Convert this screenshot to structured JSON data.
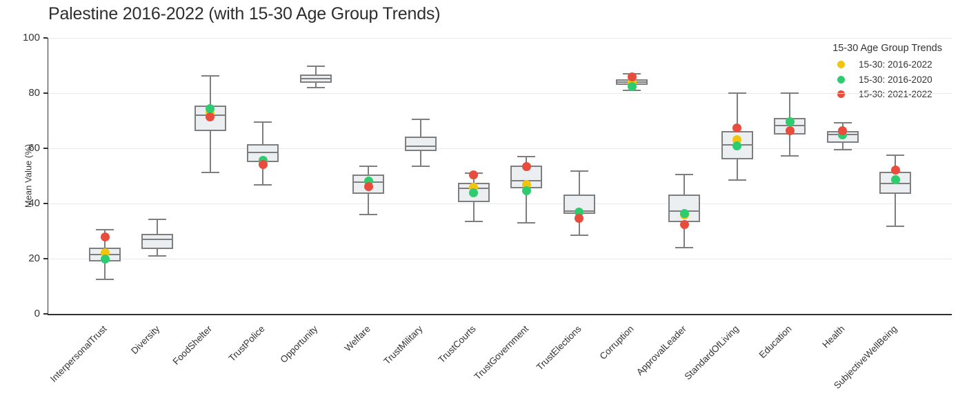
{
  "chart_data": {
    "type": "box",
    "title": "Palestine 2016-2022 (with 15-30 Age Group Trends)",
    "ylabel": "Mean Value (%)",
    "ylim": [
      0,
      100
    ],
    "y_ticks": [
      0,
      20,
      40,
      60,
      80,
      100
    ],
    "grid": true,
    "style": {
      "background": "#ffffff",
      "box_fill": "#eceff1",
      "box_stroke": "#7e7e7e",
      "grid_color": "#e8e8e8",
      "axis_color": "#2f2f2f",
      "text_color": "#333333"
    },
    "legend": {
      "title": "15-30 Age Group Trends",
      "position": "top-right",
      "entries": [
        {
          "key": "avg_2016_2022",
          "label": "15-30: 2016-2022",
          "color": "#f1c40f"
        },
        {
          "key": "avg_2016_2020",
          "label": "15-30: 2016-2020",
          "color": "#2ecc71"
        },
        {
          "key": "avg_2021_2022",
          "label": "15-30: 2021-2022",
          "color": "#e74c3c"
        }
      ]
    },
    "categories": [
      "InterpersonalTrust",
      "Diversity",
      "FoodShelter",
      "TrustPolice",
      "Opportunity",
      "Welfare",
      "TrustMilitary",
      "TrustCourts",
      "TrustGovernment",
      "TrustElections",
      "Corruption",
      "ApprovalLeader",
      "StandardOfLiving",
      "Education",
      "Health",
      "SubjectiveWellBeing"
    ],
    "boxes": [
      {
        "category": "InterpersonalTrust",
        "low": 12.5,
        "q1": 19.0,
        "median": 21.6,
        "q3": 24.1,
        "high": 30.4,
        "points": {
          "avg_2016_2022": 22.1,
          "avg_2016_2020": 19.8,
          "avg_2021_2022": 27.9
        }
      },
      {
        "category": "Diversity",
        "low": 21.0,
        "q1": 23.5,
        "median": 26.9,
        "q3": 28.9,
        "high": 34.3,
        "points": null
      },
      {
        "category": "FoodShelter",
        "low": 51.3,
        "q1": 66.2,
        "median": 72.0,
        "q3": 75.5,
        "high": 86.3,
        "points": {
          "avg_2016_2022": 73.0,
          "avg_2016_2020": 74.4,
          "avg_2021_2022": 71.4
        }
      },
      {
        "category": "TrustPolice",
        "low": 46.7,
        "q1": 55.0,
        "median": 58.5,
        "q3": 61.5,
        "high": 69.5,
        "points": {
          "avg_2016_2022": 55.2,
          "avg_2016_2020": 55.6,
          "avg_2021_2022": 54.2
        }
      },
      {
        "category": "Opportunity",
        "low": 82.0,
        "q1": 83.8,
        "median": 85.3,
        "q3": 86.8,
        "high": 89.8,
        "points": null
      },
      {
        "category": "Welfare",
        "low": 36.0,
        "q1": 43.5,
        "median": 47.8,
        "q3": 50.4,
        "high": 53.5,
        "points": {
          "avg_2016_2022": 48.1,
          "avg_2016_2020": 48.1,
          "avg_2021_2022": 46.2
        }
      },
      {
        "category": "TrustMilitary",
        "low": 53.6,
        "q1": 59.0,
        "median": 60.8,
        "q3": 64.2,
        "high": 70.4,
        "points": null
      },
      {
        "category": "TrustCourts",
        "low": 33.5,
        "q1": 40.4,
        "median": 45.5,
        "q3": 47.6,
        "high": 51.1,
        "points": {
          "avg_2016_2022": 46.0,
          "avg_2016_2020": 43.9,
          "avg_2021_2022": 50.5
        }
      },
      {
        "category": "TrustGovernment",
        "low": 32.9,
        "q1": 45.5,
        "median": 48.2,
        "q3": 53.8,
        "high": 57.1,
        "points": {
          "avg_2016_2022": 47.0,
          "avg_2016_2020": 44.7,
          "avg_2021_2022": 53.4
        }
      },
      {
        "category": "TrustElections",
        "low": 28.4,
        "q1": 36.2,
        "median": 37.3,
        "q3": 43.3,
        "high": 51.7,
        "points": {
          "avg_2016_2022": 37.0,
          "avg_2016_2020": 37.0,
          "avg_2021_2022": 34.7
        }
      },
      {
        "category": "Corruption",
        "low": 81.0,
        "q1": 83.0,
        "median": 84.0,
        "q3": 85.0,
        "high": 87.0,
        "points": {
          "avg_2016_2022": 84.0,
          "avg_2016_2020": 82.5,
          "avg_2021_2022": 85.9
        }
      },
      {
        "category": "ApprovalLeader",
        "low": 24.1,
        "q1": 33.3,
        "median": 37.2,
        "q3": 43.3,
        "high": 50.4,
        "points": {
          "avg_2016_2022": 35.8,
          "avg_2016_2020": 36.3,
          "avg_2021_2022": 32.5
        }
      },
      {
        "category": "StandardOfLiving",
        "low": 48.5,
        "q1": 56.1,
        "median": 61.2,
        "q3": 66.2,
        "high": 80.0,
        "points": {
          "avg_2016_2022": 63.1,
          "avg_2016_2020": 60.9,
          "avg_2021_2022": 67.5
        }
      },
      {
        "category": "Education",
        "low": 57.3,
        "q1": 65.0,
        "median": 68.3,
        "q3": 71.1,
        "high": 79.9,
        "points": {
          "avg_2016_2022": 69.7,
          "avg_2016_2020": 69.7,
          "avg_2021_2022": 66.4
        }
      },
      {
        "category": "Health",
        "low": 59.4,
        "q1": 62.0,
        "median": 65.0,
        "q3": 66.3,
        "high": 69.3,
        "points": {
          "avg_2016_2022": 64.8,
          "avg_2016_2020": 64.8,
          "avg_2021_2022": 66.3
        }
      },
      {
        "category": "SubjectiveWellBeing",
        "low": 31.7,
        "q1": 43.5,
        "median": 47.2,
        "q3": 51.5,
        "high": 57.5,
        "points": {
          "avg_2016_2022": 48.6,
          "avg_2016_2020": 48.6,
          "avg_2021_2022": 52.1
        }
      }
    ]
  }
}
